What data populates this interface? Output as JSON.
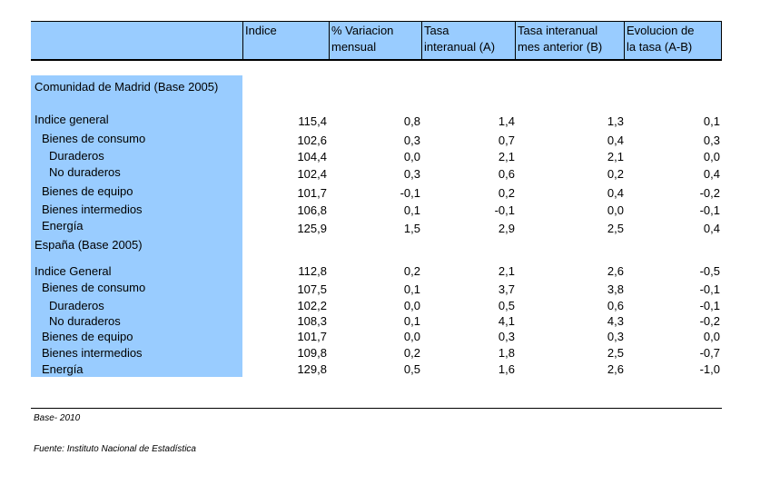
{
  "headers": [
    {
      "line1": "Indice",
      "line2": ""
    },
    {
      "line1": "% Variacion",
      "line2": "mensual"
    },
    {
      "line1": "Tasa",
      "line2": "interanual (A)"
    },
    {
      "line1": "Tasa interanual",
      "line2": "mes anterior (B)"
    },
    {
      "line1": "Evolucion de",
      "line2": "la tasa (A-B)"
    }
  ],
  "sections": [
    {
      "title": "Comunidad de Madrid (Base 2005)",
      "rows": [
        {
          "label": "Indice general",
          "values": [
            "115,4",
            "0,8",
            "1,4",
            "1,3",
            "0,1"
          ]
        },
        {
          "label": "Bienes de consumo",
          "values": [
            "102,6",
            "0,3",
            "0,7",
            "0,4",
            "0,3"
          ]
        },
        {
          "label": "Duraderos",
          "values": [
            "104,4",
            "0,0",
            "2,1",
            "2,1",
            "0,0"
          ]
        },
        {
          "label": "No duraderos",
          "values": [
            "102,4",
            "0,3",
            "0,6",
            "0,2",
            "0,4"
          ]
        },
        {
          "label": "Bienes de equipo",
          "values": [
            "101,7",
            "-0,1",
            "0,2",
            "0,4",
            "-0,2"
          ]
        },
        {
          "label": "Bienes intermedios",
          "values": [
            "106,8",
            "0,1",
            "-0,1",
            "0,0",
            "-0,1"
          ]
        },
        {
          "label": "Energía",
          "values": [
            "125,9",
            "1,5",
            "2,9",
            "2,5",
            "0,4"
          ]
        }
      ]
    },
    {
      "title": "España (Base 2005)",
      "rows": [
        {
          "label": "Indice General",
          "values": [
            "112,8",
            "0,2",
            "2,1",
            "2,6",
            "-0,5"
          ]
        },
        {
          "label": "Bienes de consumo",
          "values": [
            "107,5",
            "0,1",
            "3,7",
            "3,8",
            "-0,1"
          ]
        },
        {
          "label": "Duraderos",
          "values": [
            "102,2",
            "0,0",
            "0,5",
            "0,6",
            "-0,1"
          ]
        },
        {
          "label": "No duraderos",
          "values": [
            "108,3",
            "0,1",
            "4,1",
            "4,3",
            "-0,2"
          ]
        },
        {
          "label": "Bienes de equipo",
          "values": [
            "101,7",
            "0,0",
            "0,3",
            "0,3",
            "0,0"
          ]
        },
        {
          "label": "Bienes intermedios",
          "values": [
            "109,8",
            "0,2",
            "1,8",
            "2,5",
            "-0,7"
          ]
        },
        {
          "label": "Energía",
          "values": [
            "129,8",
            "0,5",
            "1,6",
            "2,6",
            "-1,0"
          ]
        }
      ]
    }
  ],
  "footer": {
    "base": "Base- 2010",
    "source": "Fuente: Instituto Nacional de Estadística"
  }
}
